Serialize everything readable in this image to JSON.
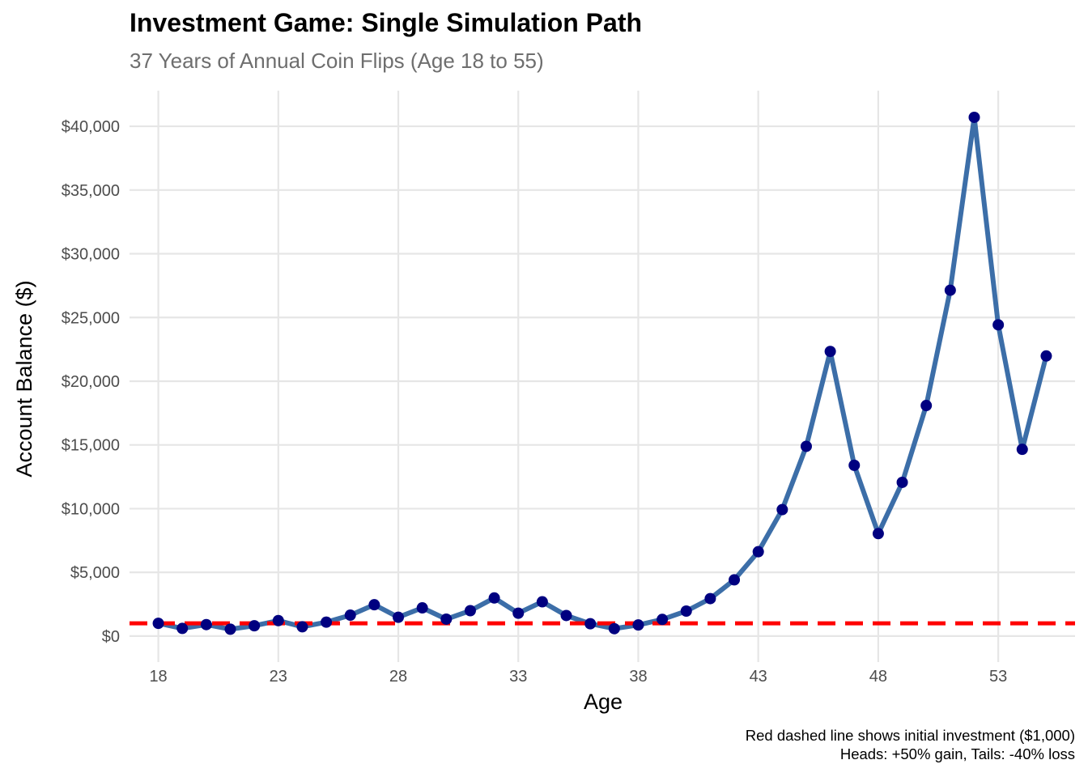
{
  "chart_data": {
    "type": "line",
    "title": "Investment Game: Single Simulation Path",
    "subtitle": "37 Years of Annual Coin Flips (Age 18 to 55)",
    "xlabel": "Age",
    "ylabel": "Account Balance ($)",
    "caption": [
      "Red dashed line shows initial investment ($1,000)",
      "Heads: +50% gain, Tails: -40% loss"
    ],
    "xlim": [
      16.8,
      56.2
    ],
    "ylim": [
      -2040,
      42800
    ],
    "x_ticks": [
      18,
      23,
      28,
      33,
      38,
      43,
      48,
      53
    ],
    "x_tick_labels": [
      "18",
      "23",
      "28",
      "33",
      "38",
      "43",
      "48",
      "53"
    ],
    "y_ticks": [
      0,
      5000,
      10000,
      15000,
      20000,
      25000,
      30000,
      35000,
      40000
    ],
    "y_tick_labels": [
      "$0",
      "$5,000",
      "$10,000",
      "$15,000",
      "$20,000",
      "$25,000",
      "$30,000",
      "$35,000",
      "$40,000"
    ],
    "grid": true,
    "x": [
      18,
      19,
      20,
      21,
      22,
      23,
      24,
      25,
      26,
      27,
      28,
      29,
      30,
      31,
      32,
      33,
      34,
      35,
      36,
      37,
      38,
      39,
      40,
      41,
      42,
      43,
      44,
      45,
      46,
      47,
      48,
      49,
      50,
      51,
      52,
      53,
      54,
      55
    ],
    "series": [
      {
        "values": [
          1000,
          600,
          900,
          540,
          810,
          1215,
          729,
          1094,
          1640,
          2460,
          1476,
          2214,
          1329,
          1993,
          2990,
          1794,
          2690,
          1614,
          969,
          581,
          871,
          1307,
          1961,
          2941,
          4412,
          6618,
          9927,
          14890,
          22335,
          13401,
          8041,
          12061,
          18091,
          27137,
          40706,
          24423,
          14654,
          21981
        ],
        "line_color": "#3c6ea8",
        "marker_color": "#000080"
      }
    ],
    "reference_line": {
      "value": 1000,
      "color": "#ff0000",
      "style": "dashed"
    },
    "grid_color": "#e6e6e6"
  }
}
